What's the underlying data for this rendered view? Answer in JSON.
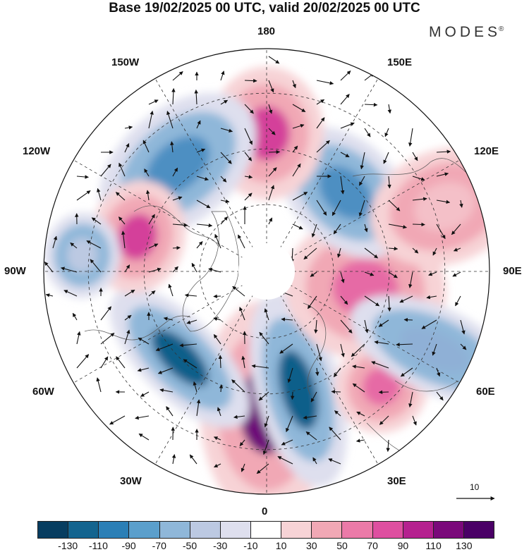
{
  "title": "Base 19/02/2025 00 UTC, valid 20/02/2025 00 UTC",
  "brand": {
    "name": "MODES",
    "mark": "®"
  },
  "longitude_labels": {
    "top": "180",
    "bottom": "0",
    "left": "90W",
    "right": "90E",
    "upper_left_1": "150W",
    "upper_left_2": "120W",
    "upper_right_1": "150E",
    "upper_right_2": "120E",
    "lower_left_1": "60W",
    "lower_left_2": "30W",
    "lower_right_1": "60E",
    "lower_right_2": "30E"
  },
  "reference_vector": {
    "label": "10"
  },
  "colorbar": {
    "labels": [
      "-130",
      "-110",
      "-90",
      "-70",
      "-50",
      "-30",
      "-10",
      "10",
      "30",
      "50",
      "70",
      "90",
      "110",
      "130"
    ],
    "colors": [
      "#073d60",
      "#13648f",
      "#2b7fb6",
      "#5b9fcc",
      "#8fb7d9",
      "#bcc9e2",
      "#dedfee",
      "#ffffff",
      "#f7d3d6",
      "#f1a8b5",
      "#eb7aa8",
      "#de4fa0",
      "#b5218f",
      "#7a097a",
      "#4a0066"
    ]
  },
  "anomaly_field": {
    "centers": [
      {
        "lon_label": "near 0",
        "sign": "positive",
        "max_class": "130"
      },
      {
        "lon_label": "near 15E",
        "sign": "negative",
        "max_class": "-110"
      },
      {
        "lon_label": "near 45W",
        "sign": "negative",
        "max_class": "-110"
      },
      {
        "lon_label": "near 80E",
        "sign": "positive",
        "max_class": "70"
      },
      {
        "lon_label": "near 135E",
        "sign": "negative",
        "max_class": "-70"
      },
      {
        "lon_label": "near 180",
        "sign": "positive",
        "max_class": "90"
      },
      {
        "lon_label": "near 140W",
        "sign": "negative",
        "max_class": "-70"
      },
      {
        "lon_label": "near 105W",
        "sign": "positive",
        "max_class": "90"
      },
      {
        "lon_label": "near 45E",
        "sign": "positive",
        "max_class": "70"
      },
      {
        "lon_label": "near 65E",
        "sign": "negative",
        "max_class": "-50"
      },
      {
        "lon_label": "near 95W",
        "sign": "negative",
        "max_class": "-30"
      },
      {
        "lon_label": "near 110E",
        "sign": "positive",
        "max_class": "30"
      }
    ]
  }
}
